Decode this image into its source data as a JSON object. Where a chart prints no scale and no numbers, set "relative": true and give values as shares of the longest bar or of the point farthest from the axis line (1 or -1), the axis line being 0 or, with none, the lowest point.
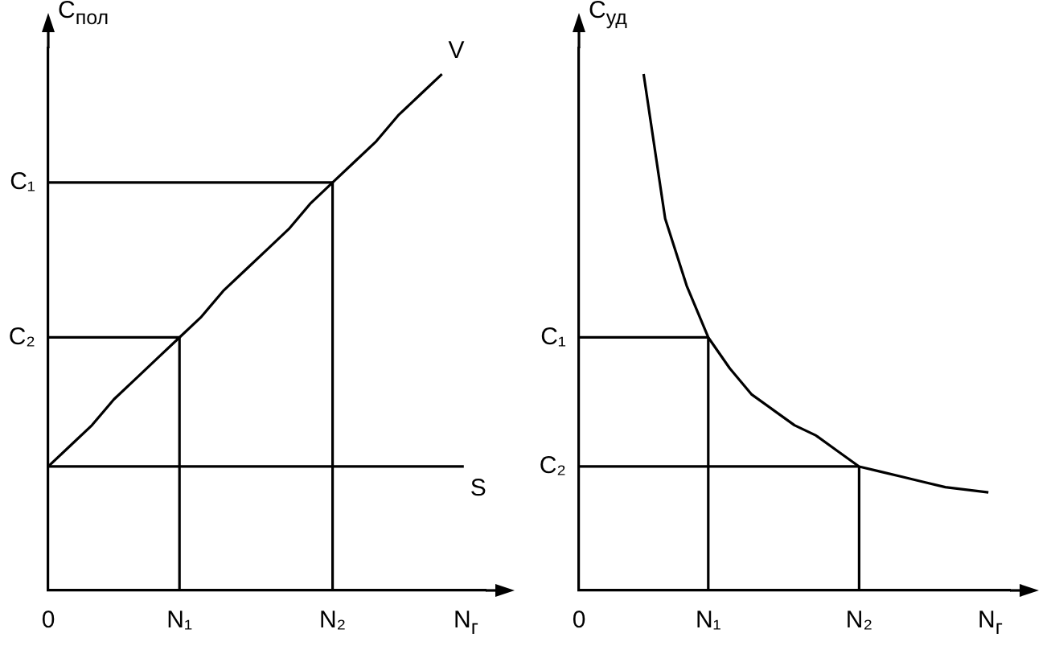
{
  "chart_data": [
    {
      "type": "line",
      "relative": true,
      "ylabel": "C$_{пол}$",
      "xlabel": "N$_{г}$",
      "categories": [
        "0",
        null,
        null,
        null,
        null,
        null,
        "N₁",
        null,
        null,
        null,
        null,
        null,
        null,
        "N₂",
        null,
        null,
        null,
        null,
        null,
        null,
        null
      ],
      "ref_lines": [
        {
          "axis": "x",
          "value": "N₁",
          "color": "#000000"
        },
        {
          "axis": "x",
          "value": "N₂",
          "color": "#000000"
        },
        {
          "axis": "y",
          "value": 0.49,
          "label": "C₂",
          "color": "#000000"
        },
        {
          "axis": "y",
          "value": 0.79,
          "label": "C₁",
          "color": "#000000"
        }
      ],
      "series": [
        {
          "name": "V",
          "color": "#000000",
          "values": [
            0.24,
            0.28,
            0.32,
            0.37,
            0.41,
            0.45,
            0.49,
            0.53,
            0.58,
            0.62,
            0.66,
            0.7,
            0.75,
            0.79,
            0.83,
            0.87,
            0.92,
            0.96,
            1,
            null,
            null
          ]
        },
        {
          "name": "S",
          "color": "#000000",
          "values": [
            0.24,
            0.24,
            0.24,
            0.24,
            0.24,
            0.24,
            0.24,
            0.24,
            0.24,
            0.24,
            0.24,
            0.24,
            0.24,
            0.24,
            0.24,
            0.24,
            0.24,
            0.24,
            0.24,
            0.24,
            null
          ]
        }
      ]
    },
    {
      "type": "line",
      "relative": true,
      "ylabel": "C$_{уд}$",
      "xlabel": "N$_{г}$",
      "categories": [
        "0",
        null,
        null,
        null,
        null,
        null,
        "N₁",
        null,
        null,
        null,
        null,
        null,
        null,
        "N₂",
        null,
        null,
        null,
        null,
        null,
        null,
        null
      ],
      "ref_lines": [
        {
          "axis": "x",
          "value": "N₁",
          "color": "#000000"
        },
        {
          "axis": "x",
          "value": "N₂",
          "color": "#000000"
        },
        {
          "axis": "y",
          "value": 0.24,
          "label": "C₂",
          "color": "#000000"
        },
        {
          "axis": "y",
          "value": 0.49,
          "label": "C₁",
          "color": "#000000"
        }
      ],
      "series": [
        {
          "color": "#000000",
          "values": [
            null,
            null,
            null,
            1,
            0.72,
            0.59,
            0.49,
            0.43,
            0.38,
            0.35,
            0.32,
            0.3,
            0.27,
            0.24,
            0.23,
            0.22,
            0.21,
            0.2,
            0.195,
            0.19,
            null
          ]
        }
      ]
    }
  ]
}
